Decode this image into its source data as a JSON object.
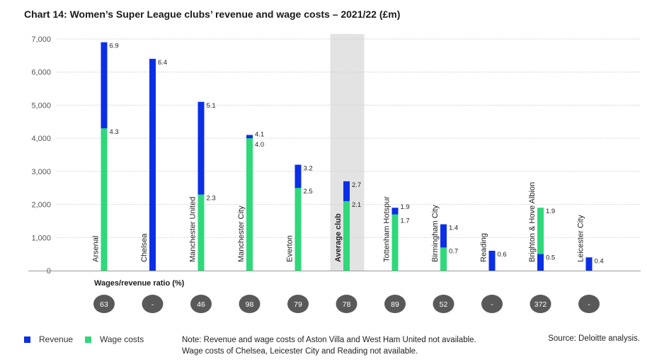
{
  "title": "Chart 14: Women’s Super League clubs’ revenue and wage costs – 2021/22 (£m)",
  "ratio_title": "Wages/revenue ratio (%)",
  "legend": [
    {
      "label": "Revenue",
      "color": "#0b2fe6"
    },
    {
      "label": "Wage costs",
      "color": "#2fd87a"
    }
  ],
  "note": "Note: Revenue and wage costs of Aston Villa and West Ham United not available. Wage costs of Chelsea, Leicester City and Reading not available.",
  "source": "Source: Deloitte analysis.",
  "colors": {
    "revenue": "#0b2fe6",
    "wages": "#2fd87a",
    "highlight": "#e3e3e3",
    "badge": "#595959"
  },
  "chart_data": {
    "type": "bar",
    "ylim": [
      0,
      7000
    ],
    "yticks": [
      0,
      1000,
      2000,
      3000,
      4000,
      5000,
      6000,
      7000
    ],
    "ytick_labels": [
      "0",
      "1,000",
      "2,000",
      "3,000",
      "4,000",
      "5,000",
      "6,000",
      "7,000"
    ],
    "grid": true,
    "highlight_category": "Average club",
    "categories": [
      "Arsenal",
      "Chelsea",
      "Manchester United",
      "Manchester City",
      "Everton",
      "Average club",
      "Tottenham Hotspur",
      "Birmingham City",
      "Reading",
      "Brighton & Hove Albion",
      "Leicester City"
    ],
    "series": [
      {
        "name": "Revenue",
        "values": [
          6900,
          6400,
          5100,
          4100,
          3200,
          2700,
          1900,
          1400,
          600,
          500,
          400
        ],
        "labels": [
          "6.9",
          "6.4",
          "5.1",
          "4.1",
          "3.2",
          "2.7",
          "1.9",
          "1.4",
          "0.6",
          "0.5",
          "0.4"
        ]
      },
      {
        "name": "Wage costs",
        "values": [
          4300,
          null,
          2300,
          4000,
          2500,
          2100,
          1700,
          700,
          null,
          1900,
          null
        ],
        "labels": [
          "4.3",
          "",
          "2.3",
          "4.0",
          "2.5",
          "2.1",
          "1.7",
          "0.7",
          "",
          "1.9",
          ""
        ]
      }
    ],
    "ratios": [
      "63",
      "-",
      "46",
      "98",
      "79",
      "78",
      "89",
      "52",
      "-",
      "372",
      "-"
    ]
  }
}
